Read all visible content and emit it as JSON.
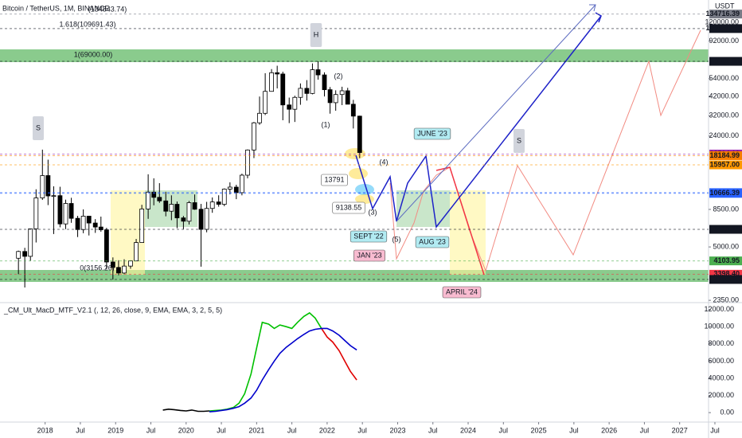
{
  "chart_data": [
    {
      "type": "candlestick",
      "title": "Bitcoin / TetherUS, 1M, BINANCE",
      "y_unit": "USDT",
      "log_scale": true,
      "x": [
        2017.58,
        2017.67,
        2017.75,
        2017.83,
        2017.92,
        2018.0,
        2018.08,
        2018.17,
        2018.25,
        2018.33,
        2018.42,
        2018.5,
        2018.58,
        2018.67,
        2018.75,
        2018.83,
        2018.92,
        2019.0,
        2019.08,
        2019.17,
        2019.25,
        2019.33,
        2019.42,
        2019.5,
        2019.58,
        2019.67,
        2019.75,
        2019.83,
        2019.92,
        2020.0,
        2020.08,
        2020.17,
        2020.25,
        2020.33,
        2020.42,
        2020.5,
        2020.58,
        2020.67,
        2020.75,
        2020.83,
        2020.92,
        2021.0,
        2021.08,
        2021.17,
        2021.25,
        2021.33,
        2021.42,
        2021.5,
        2021.58,
        2021.67,
        2021.75,
        2021.83,
        2021.92,
        2022.0,
        2022.08,
        2022.17,
        2022.25,
        2022.33,
        2022.42
      ],
      "open": [
        4261,
        4689,
        4378,
        6463,
        10000,
        13716,
        10285,
        10326,
        6923,
        9246,
        7494,
        6391,
        7729,
        7011,
        6626,
        6371,
        4041,
        3742,
        3458,
        3813,
        4102,
        5320,
        8555,
        10854,
        10082,
        9588,
        8289,
        9140,
        7541,
        7195,
        9352,
        8523,
        6410,
        8620,
        9448,
        9138,
        11335,
        11649,
        10776,
        13791,
        19695,
        28923,
        33092,
        45135,
        58740,
        57694,
        37253,
        35045,
        41461,
        47100,
        43824,
        61300,
        56950,
        46216,
        38466,
        43160,
        45510,
        37630,
        31801
      ],
      "high": [
        4745,
        4939,
        6470,
        11300,
        19798,
        17176,
        11786,
        11710,
        9759,
        10020,
        7760,
        8506,
        7769,
        7410,
        7680,
        6550,
        4312,
        4143,
        4200,
        4140,
        5600,
        9074,
        13970,
        13200,
        12325,
        10905,
        10370,
        9505,
        7750,
        9578,
        10500,
        9188,
        9460,
        10067,
        10380,
        11444,
        12468,
        12050,
        14100,
        19863,
        29300,
        41950,
        58352,
        61844,
        64854,
        59592,
        41330,
        42448,
        50500,
        52920,
        67000,
        69000,
        59053,
        47990,
        45821,
        48189,
        47444,
        40023,
        31989
      ],
      "low": [
        3400,
        2817,
        4110,
        5325,
        9722,
        9035,
        6000,
        6600,
        6430,
        7032,
        5750,
        6070,
        5880,
        6100,
        6200,
        3652,
        3156,
        3350,
        3400,
        3672,
        4100,
        5300,
        7440,
        9010,
        9320,
        7710,
        7300,
        6515,
        6435,
        6871,
        8450,
        3782,
        6150,
        8105,
        8833,
        8893,
        10518,
        9825,
        10374,
        13195,
        17572,
        28130,
        32296,
        44950,
        47044,
        30000,
        28805,
        29278,
        37332,
        39600,
        43283,
        53256,
        42000,
        32917,
        34322,
        37155,
        37578,
        26700,
        17567
      ],
      "close": [
        4689,
        4378,
        6463,
        10000,
        13716,
        10285,
        10326,
        6923,
        9246,
        7494,
        6391,
        7729,
        7011,
        6626,
        6371,
        4041,
        3742,
        3458,
        3813,
        4102,
        5320,
        8555,
        10854,
        10082,
        9588,
        8289,
        9140,
        7541,
        7195,
        9352,
        8523,
        6410,
        8620,
        9448,
        9138,
        11335,
        11649,
        10776,
        13791,
        19695,
        28923,
        33092,
        45135,
        58740,
        57694,
        37253,
        35045,
        41461,
        47100,
        43824,
        61300,
        56950,
        46216,
        38466,
        43160,
        45510,
        37630,
        31801,
        19000
      ],
      "up_color": "#ffffff",
      "down_color": "#000000",
      "xlim": [
        2017.36,
        2027.41
      ],
      "ylim": [
        2275,
        164300
      ],
      "xticks": [
        2018,
        {
          "value": 2018.5,
          "label": "Jul"
        },
        2019,
        {
          "value": 2019.5,
          "label": "Jul"
        },
        2020,
        {
          "value": 2020.5,
          "label": "Jul"
        },
        2021,
        {
          "value": 2021.5,
          "label": "Jul"
        },
        2022,
        {
          "value": 2022.5,
          "label": "Jul"
        },
        2023,
        {
          "value": 2023.5,
          "label": "Jul"
        },
        2024,
        {
          "value": 2024.5,
          "label": "Jul"
        },
        2025,
        {
          "value": 2025.5,
          "label": "Jul"
        },
        2026,
        {
          "value": 2026.5,
          "label": "Jul"
        },
        2027,
        {
          "value": 2027.5,
          "label": "Jul"
        }
      ],
      "yticks": [
        {
          "value": 120000,
          "label": "120000.00"
        },
        {
          "value": 92000,
          "label": "92000.00"
        },
        {
          "value": 54000,
          "label": "54000.00"
        },
        {
          "value": 42000,
          "label": "42000.00"
        },
        {
          "value": 32000,
          "label": "32000.00"
        },
        {
          "value": 24000,
          "label": "24000.00"
        },
        {
          "value": 8500,
          "label": "8500.00"
        },
        {
          "value": 5000,
          "label": "5000.00"
        },
        {
          "value": 2350,
          "label": "2350.00"
        }
      ],
      "price_levels": [
        {
          "value": 134716.39,
          "label": "134716.39",
          "color": "#787b86"
        },
        {
          "value": 109691.43,
          "label": "109691.43",
          "color": "#131722"
        },
        {
          "value": 69000,
          "label": "69000.00",
          "color": "#131722"
        },
        {
          "value": 18594.19,
          "label": "18594.19",
          "color": "#9c27b0"
        },
        {
          "value": 18184.99,
          "label": "18184.99",
          "color": "#f57c00"
        },
        {
          "value": 15957,
          "label": "15957.00",
          "color": "#ff9800"
        },
        {
          "value": 10776.59,
          "label": "10776.59",
          "color": "#2962ff"
        },
        {
          "value": 10666.39,
          "label": "10666.39",
          "color": "#2962ff"
        },
        {
          "value": 6412.14,
          "label": "6412.14",
          "color": "#131722"
        },
        {
          "value": 4103.95,
          "label": "4103.95",
          "color": "#4caf50"
        },
        {
          "value": 3398.4,
          "label": "3398.40",
          "color": "#f23645"
        },
        {
          "value": 3156.26,
          "label": "3156.26",
          "color": "#131722"
        }
      ],
      "annotations": [
        "S",
        "H",
        "S",
        "(1)",
        "(2)",
        "(3)",
        "(4)",
        "(5)",
        "13791",
        "9138.55",
        "JUNE '23",
        "SEPT '22",
        "AUG '23",
        "JAN '23",
        "APRIL '24",
        "1(69000.00)",
        "1.618(109691.43)",
        "(134843.74)",
        "0(3156.26)"
      ]
    },
    {
      "type": "line",
      "title": "_CM_Ult_MacD_MTF_V2.1 (, 12, 26, close, 9, EMA, EMA, 3, 2, 5, 5)",
      "x": [
        2019.67,
        2019.75,
        2019.83,
        2019.92,
        2020.0,
        2020.08,
        2020.17,
        2020.25,
        2020.33,
        2020.42,
        2020.5,
        2020.58,
        2020.67,
        2020.75,
        2020.83,
        2020.92,
        2021.0,
        2021.08,
        2021.17,
        2021.25,
        2021.33,
        2021.42,
        2021.5,
        2021.58,
        2021.67,
        2021.75,
        2021.83,
        2021.92,
        2022.0,
        2022.08,
        2022.17,
        2022.25,
        2022.33,
        2022.42
      ],
      "series": [
        {
          "color": "#000000",
          "values": [
            300,
            400,
            350,
            250,
            200,
            300,
            150,
            150,
            200,
            null,
            null,
            null,
            null,
            null,
            null,
            null,
            null,
            null,
            null,
            null,
            null,
            null,
            null,
            null,
            null,
            null,
            null,
            null,
            null,
            null,
            null,
            null,
            null,
            null
          ]
        },
        {
          "color": "#00c000",
          "values": [
            null,
            null,
            null,
            null,
            null,
            null,
            null,
            null,
            200,
            250,
            300,
            400,
            600,
            1100,
            2200,
            4500,
            7500,
            10500,
            10300,
            9800,
            10200,
            10000,
            9800,
            10500,
            11200,
            11600,
            11000,
            9800,
            null,
            null,
            null,
            null,
            null,
            null
          ]
        },
        {
          "color": "#e00000",
          "values": [
            null,
            null,
            null,
            null,
            null,
            null,
            null,
            null,
            null,
            null,
            null,
            null,
            null,
            null,
            null,
            null,
            null,
            null,
            null,
            null,
            null,
            null,
            null,
            null,
            null,
            null,
            null,
            9800,
            8800,
            8200,
            7200,
            6000,
            4800,
            3800
          ]
        },
        {
          "color": "#0000cc",
          "values": [
            null,
            null,
            null,
            null,
            null,
            null,
            null,
            null,
            100,
            150,
            250,
            350,
            500,
            700,
            1100,
            1700,
            2600,
            3800,
            5000,
            6000,
            6900,
            7600,
            8100,
            8600,
            9100,
            9500,
            9700,
            9800,
            9800,
            9500,
            9000,
            8400,
            7800,
            7300
          ]
        }
      ],
      "ylim": [
        -1100,
        12800
      ],
      "yticks": [
        {
          "value": 12000,
          "label": "12000.00"
        },
        {
          "value": 10000,
          "label": "10000.00"
        },
        {
          "value": 8000,
          "label": "8000.00"
        },
        {
          "value": 6000,
          "label": "6000.00"
        },
        {
          "value": 4000,
          "label": "4000.00"
        },
        {
          "value": 2000,
          "label": "2000.00"
        },
        {
          "value": 0,
          "label": "0.00"
        }
      ]
    }
  ]
}
